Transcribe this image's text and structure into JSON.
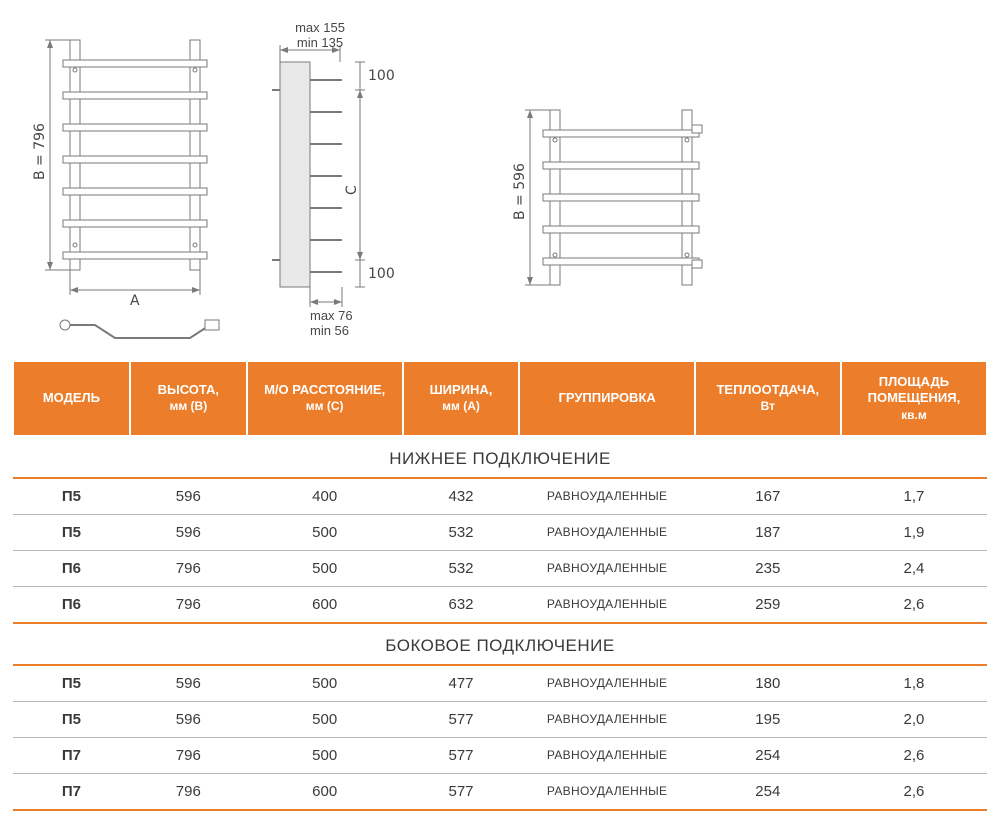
{
  "diagram": {
    "front": {
      "height_label": "B = 796",
      "width_label": "A",
      "spacer_top": "100",
      "spacer_bottom": "100",
      "c_label": "C"
    },
    "side": {
      "depth_top": "max 155\nmin 135",
      "depth_bottom": "max 76\nmin 56"
    },
    "small_front": {
      "height_label": "B = 596"
    }
  },
  "table": {
    "columns": [
      {
        "title": "МОДЕЛЬ"
      },
      {
        "title": "ВЫСОТА,",
        "sub": "мм (B)"
      },
      {
        "title": "М/О РАССТОЯНИЕ,",
        "sub": "мм (C)"
      },
      {
        "title": "ШИРИНА,",
        "sub": "мм (A)"
      },
      {
        "title": "ГРУППИРОВКА"
      },
      {
        "title": "ТЕПЛООТДАЧА,",
        "sub": "Вт"
      },
      {
        "title": "ПЛОЩАДЬ ПОМЕЩЕНИЯ,",
        "sub": "кв.м"
      }
    ],
    "col_widths": [
      "12%",
      "12%",
      "16%",
      "12%",
      "18%",
      "15%",
      "15%"
    ],
    "sections": [
      {
        "title": "НИЖНЕЕ ПОДКЛЮЧЕНИЕ",
        "rows": [
          [
            "П5",
            "596",
            "400",
            "432",
            "РАВНОУДАЛЕННЫЕ",
            "167",
            "1,7"
          ],
          [
            "П5",
            "596",
            "500",
            "532",
            "РАВНОУДАЛЕННЫЕ",
            "187",
            "1,9"
          ],
          [
            "П6",
            "796",
            "500",
            "532",
            "РАВНОУДАЛЕННЫЕ",
            "235",
            "2,4"
          ],
          [
            "П6",
            "796",
            "600",
            "632",
            "РАВНОУДАЛЕННЫЕ",
            "259",
            "2,6"
          ]
        ]
      },
      {
        "title": "БОКОВОЕ ПОДКЛЮЧЕНИЕ",
        "rows": [
          [
            "П5",
            "596",
            "500",
            "477",
            "РАВНОУДАЛЕННЫЕ",
            "180",
            "1,8"
          ],
          [
            "П5",
            "596",
            "500",
            "577",
            "РАВНОУДАЛЕННЫЕ",
            "195",
            "2,0"
          ],
          [
            "П7",
            "796",
            "500",
            "577",
            "РАВНОУДАЛЕННЫЕ",
            "254",
            "2,6"
          ],
          [
            "П7",
            "796",
            "600",
            "577",
            "РАВНОУДАЛЕННЫЕ",
            "254",
            "2,6"
          ]
        ]
      }
    ]
  },
  "colors": {
    "header_bg": "#ec7d2b",
    "line": "#7a7a7a",
    "text": "#3a3a3a"
  }
}
